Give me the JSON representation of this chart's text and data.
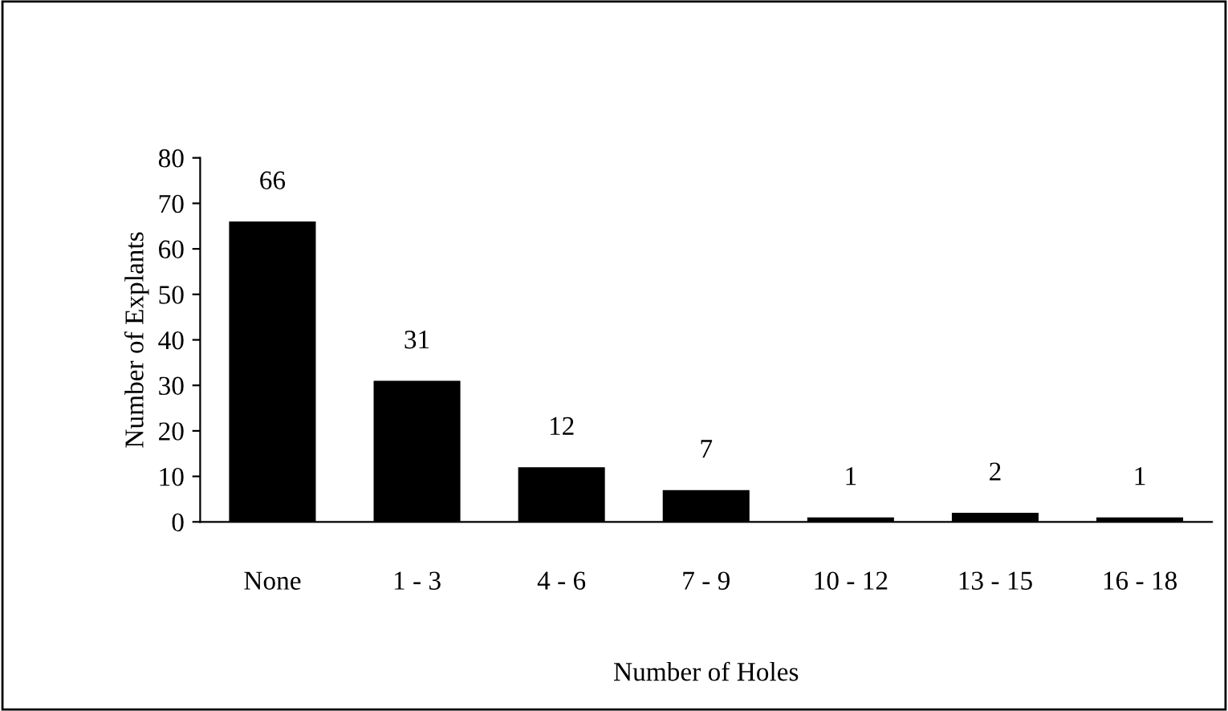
{
  "chart_data": {
    "type": "bar",
    "xlabel": "Number of Holes",
    "ylabel": "Number of Explants",
    "categories": [
      "None",
      "1 - 3",
      "4 - 6",
      "7 - 9",
      "10 - 12",
      "13 - 15",
      "16 - 18"
    ],
    "values": [
      66,
      31,
      12,
      7,
      1,
      2,
      1
    ],
    "color": "#000000",
    "ylim": [
      0,
      80
    ],
    "yticks": [
      0,
      10,
      20,
      30,
      40,
      50,
      60,
      70,
      80
    ],
    "grid": false,
    "data_labels": true,
    "legend": false
  }
}
